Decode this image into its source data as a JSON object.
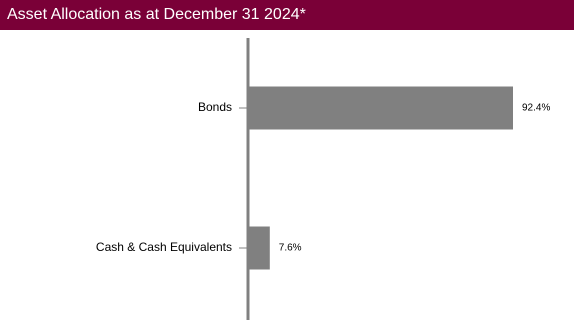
{
  "title": "Asset Allocation as at December 31 2024*",
  "colors": {
    "title_background": "#7a0037",
    "title_text": "#ffffff",
    "bar": "#808080",
    "axis": "#808080"
  },
  "chart_data": {
    "type": "bar",
    "orientation": "horizontal",
    "title": "Asset Allocation as at December 31 2024*",
    "categories": [
      "Bonds",
      "Cash & Cash Equivalents"
    ],
    "values": [
      92.4,
      7.6
    ],
    "data_labels": [
      "92.4%",
      "7.6%"
    ],
    "unit": "%",
    "xlabel": "",
    "ylabel": "",
    "xlim": [
      0,
      100
    ],
    "grid": false,
    "legend": "none"
  }
}
